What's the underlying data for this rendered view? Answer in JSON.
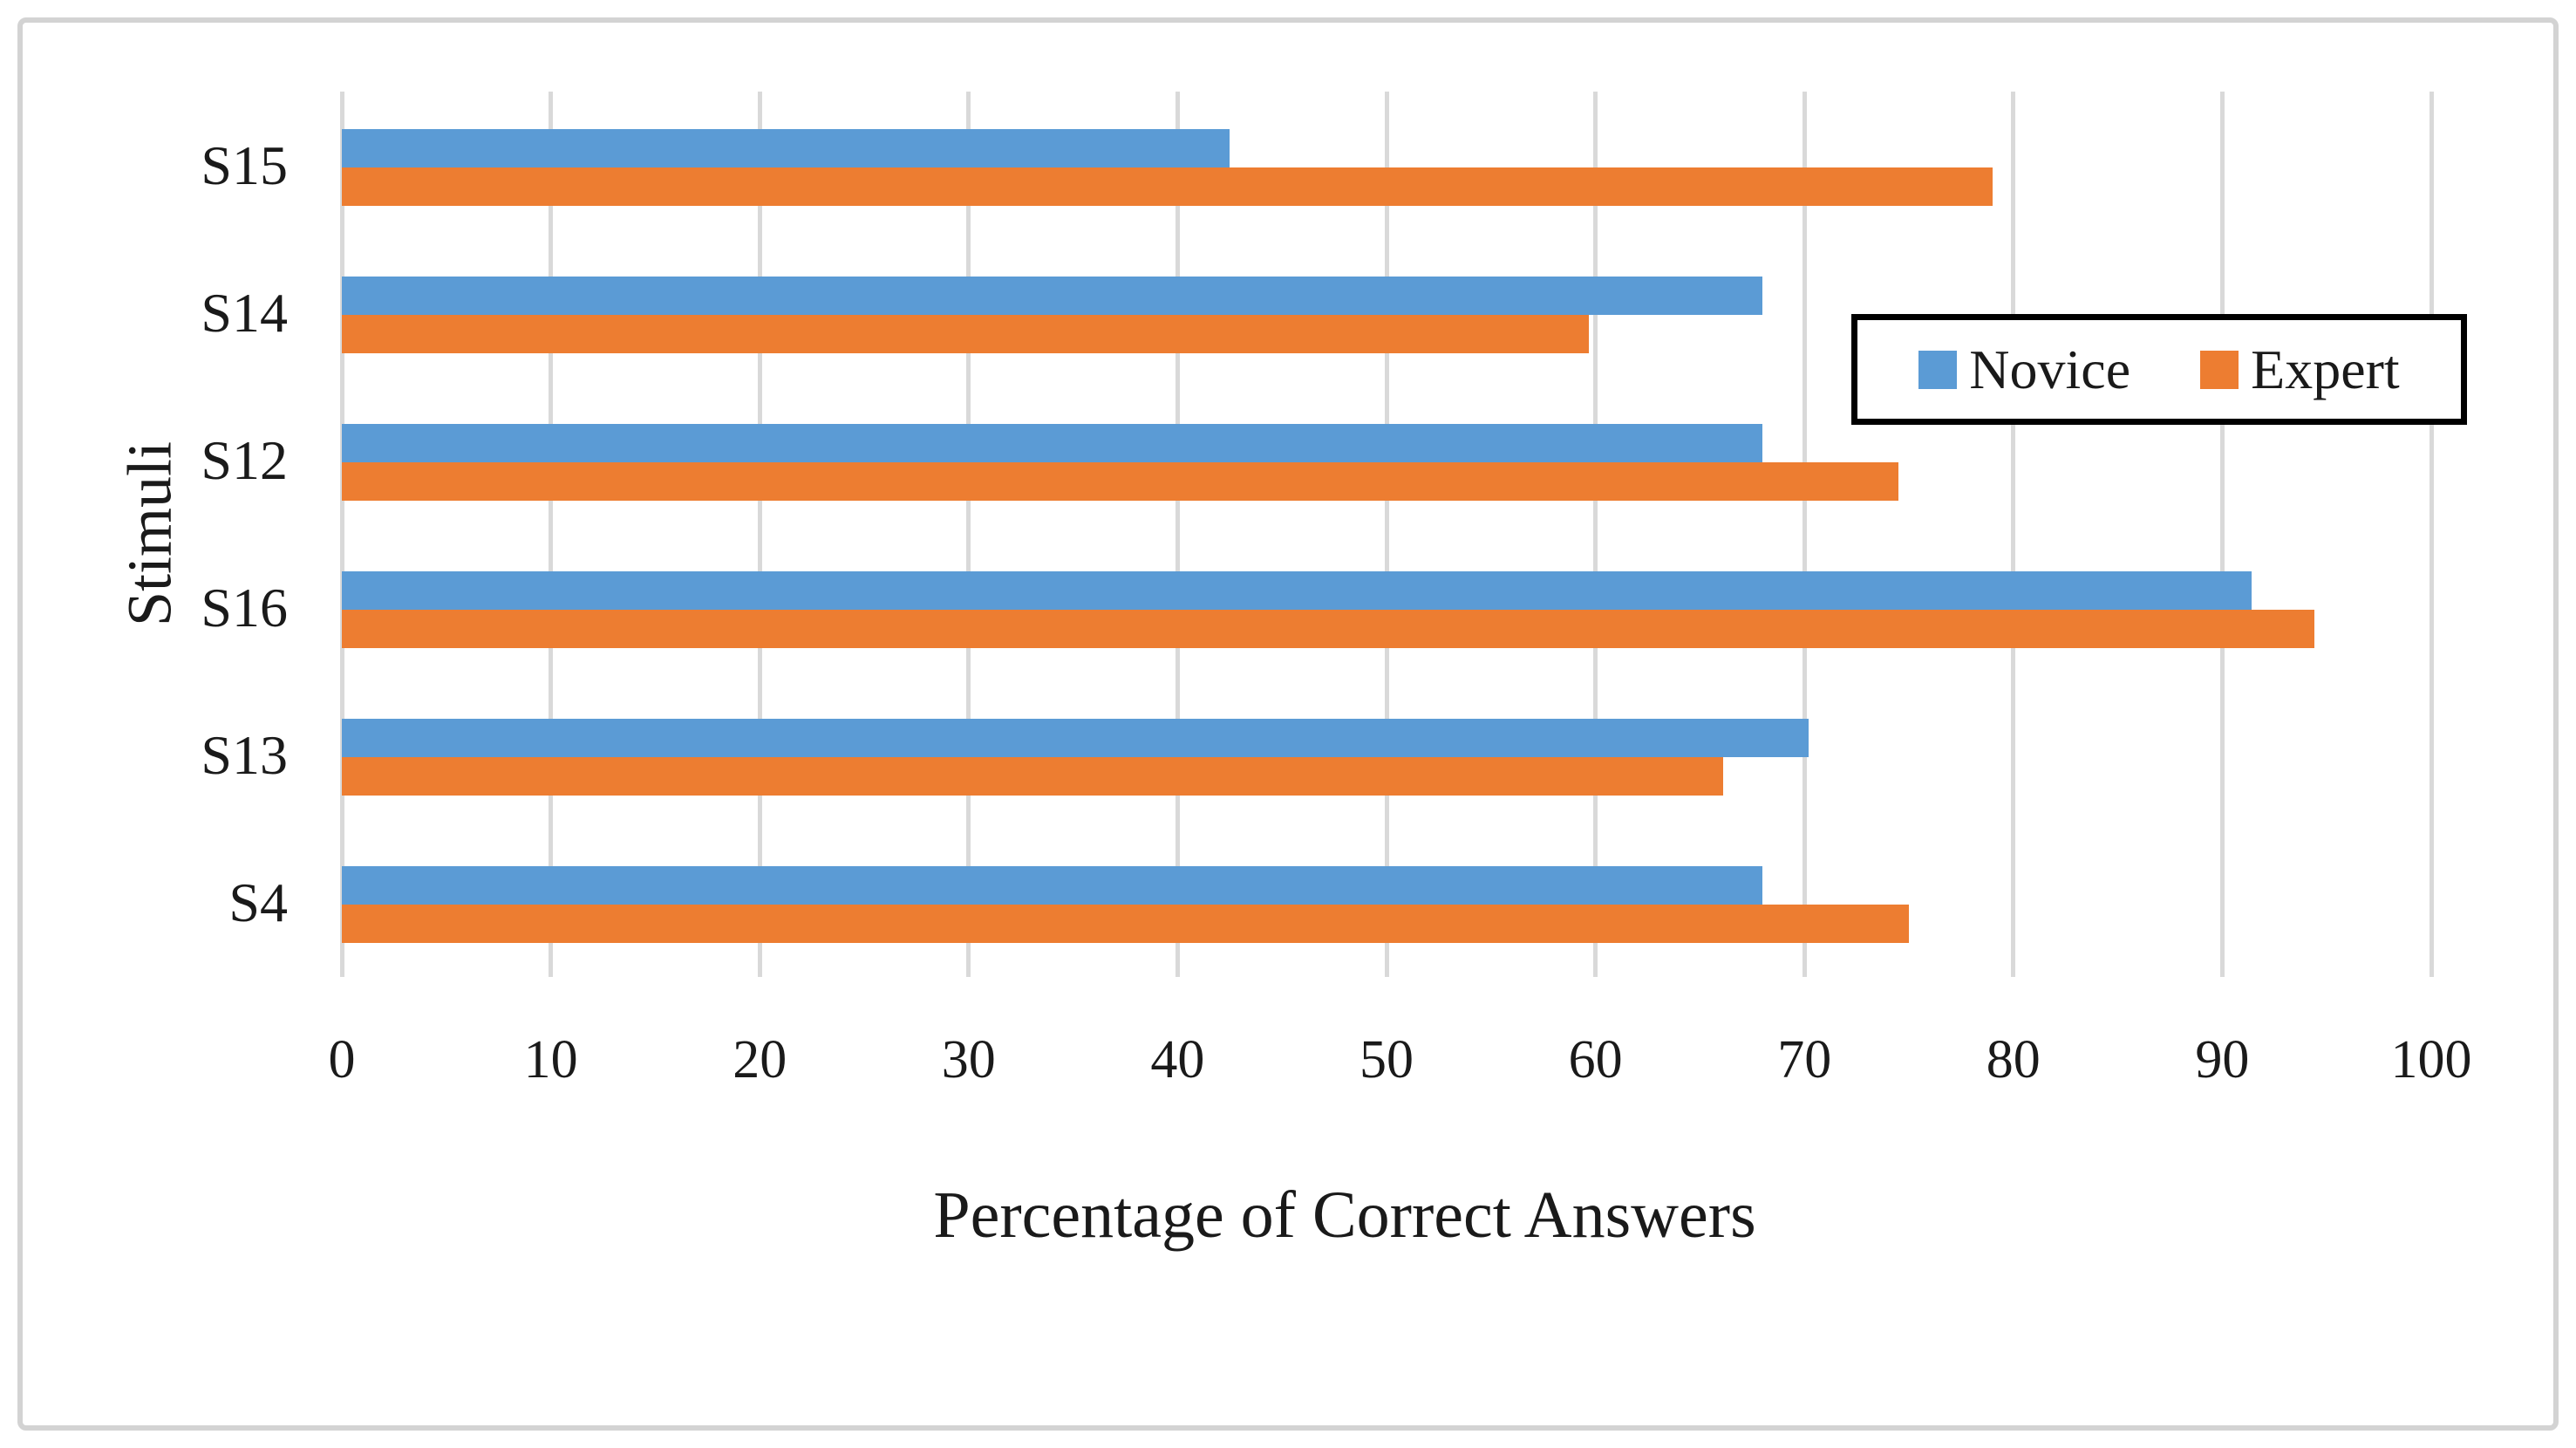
{
  "figure": {
    "background_color": "#FFFFFF",
    "border_color": "#D3D3D3"
  },
  "chart_data": {
    "type": "bar",
    "orientation": "horizontal",
    "title": "",
    "xlabel": "Percentage of Correct Answers",
    "ylabel": "Stimuli",
    "categories": [
      "S15",
      "S14",
      "S12",
      "S16",
      "S13",
      "S4"
    ],
    "series": [
      {
        "name": "Novice",
        "color": "#5B9BD5",
        "values": [
          42.5,
          68,
          68,
          91.4,
          70.2,
          68
        ]
      },
      {
        "name": "Expert",
        "color": "#ED7D31",
        "values": [
          79,
          59.7,
          74.5,
          94.4,
          66.1,
          75
        ]
      }
    ],
    "xlim": [
      0,
      100
    ],
    "xticks": [
      0,
      10,
      20,
      30,
      40,
      50,
      60,
      70,
      80,
      90,
      100
    ],
    "xtick_labels": [
      "0",
      "10",
      "20",
      "30",
      "40",
      "50",
      "60",
      "70",
      "80",
      "90",
      "100"
    ],
    "grid": "vertical",
    "gridline_color": "#D9D9D9",
    "legend_position": "inside-top-right",
    "legend_border_color": "#000000"
  }
}
